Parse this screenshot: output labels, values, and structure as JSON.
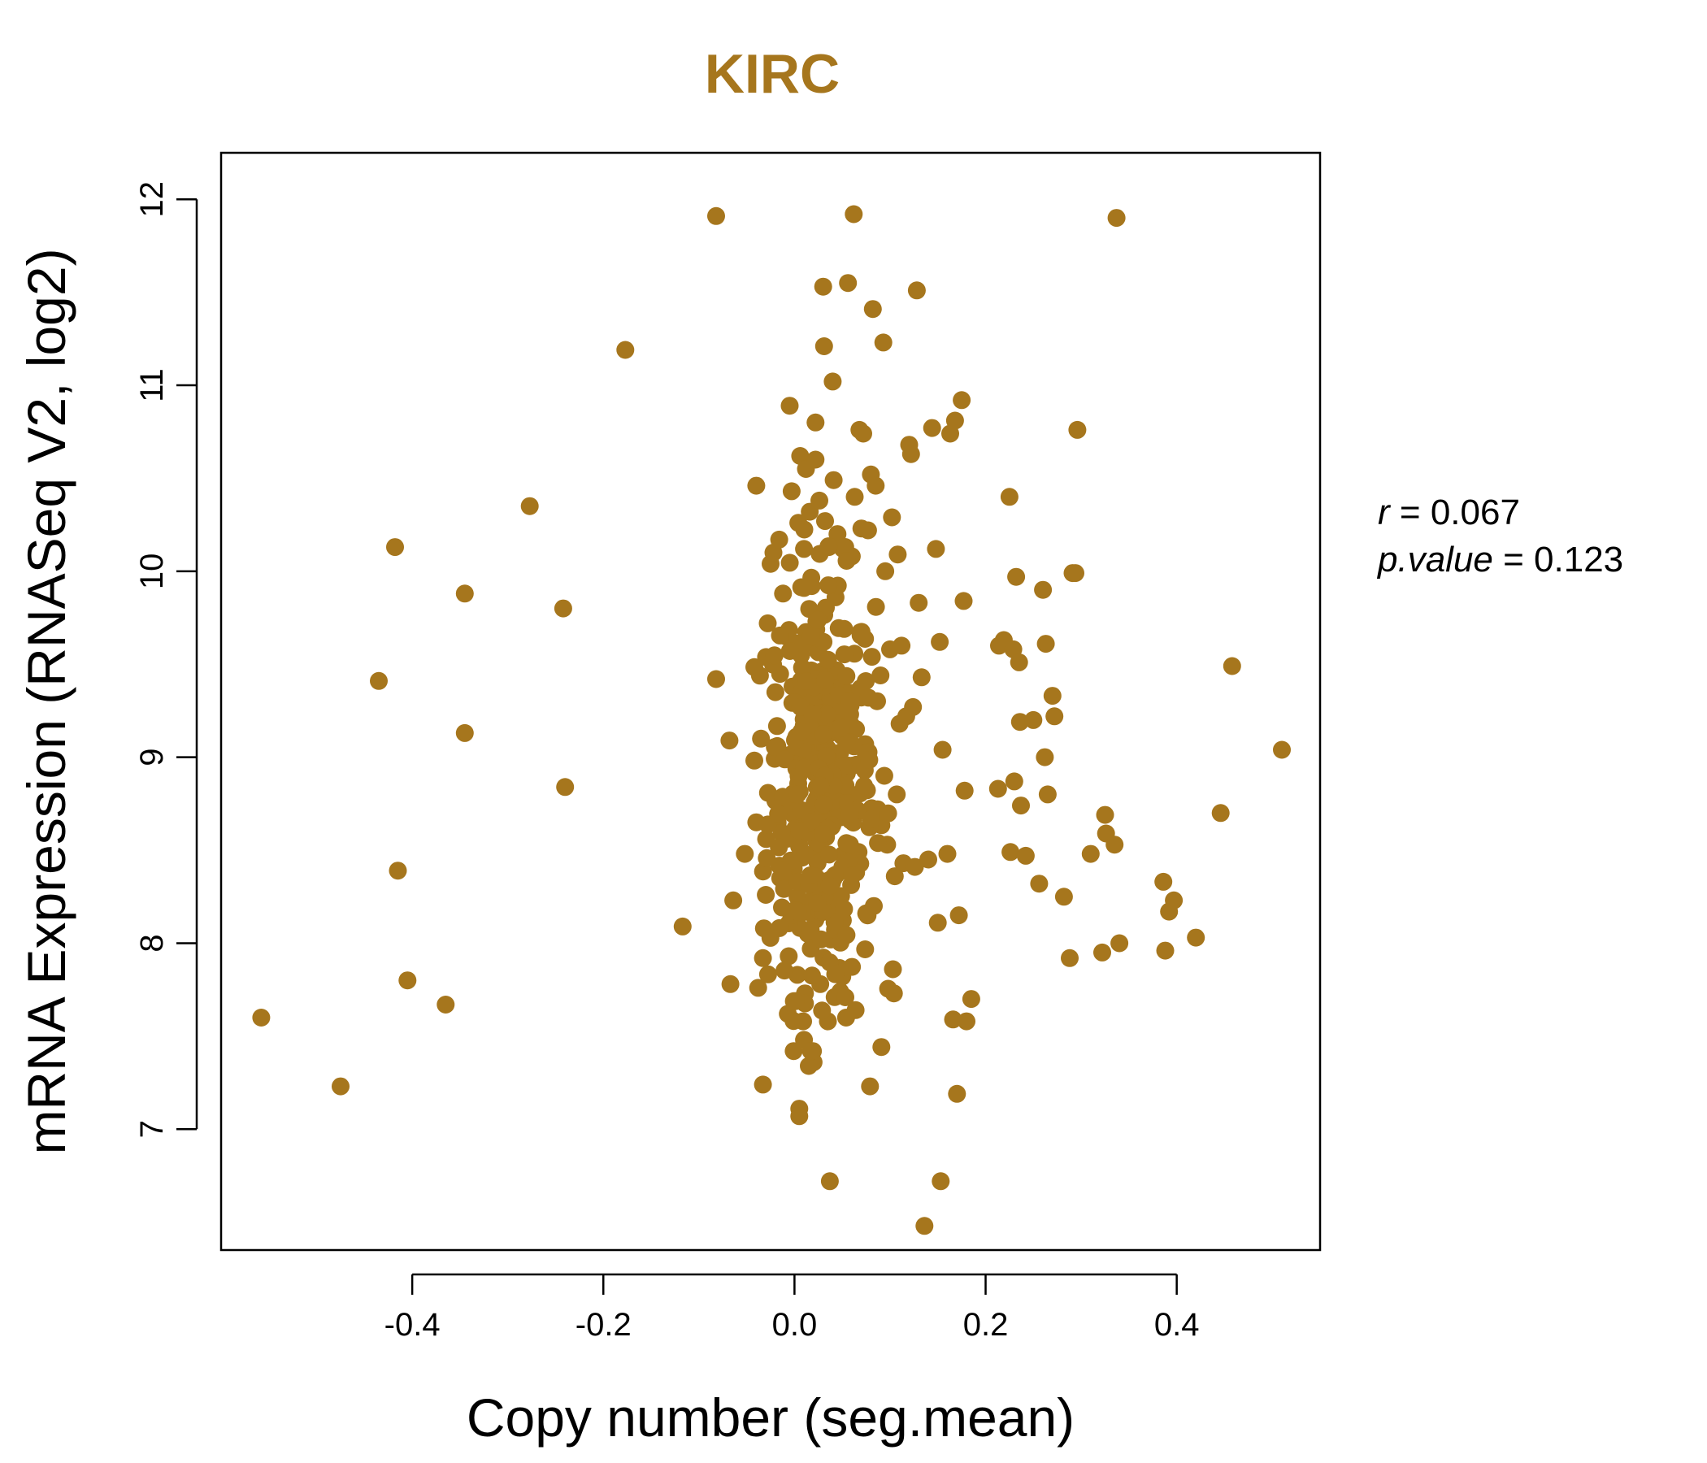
{
  "chart_data": {
    "type": "scatter",
    "title": "KIRC",
    "xlabel": "Copy number (seg.mean)",
    "ylabel": "mRNA Expression (RNASeq V2, log2)",
    "xlim": [
      -0.6,
      0.55
    ],
    "ylim": [
      6.35,
      12.25
    ],
    "x_ticks": [
      -0.4,
      -0.2,
      0.0,
      0.2,
      0.4
    ],
    "x_tick_labels": [
      "-0.4",
      "-0.2",
      "0.0",
      "0.2",
      "0.4"
    ],
    "y_ticks": [
      7,
      8,
      9,
      10,
      11,
      12
    ],
    "y_tick_labels": [
      "7",
      "8",
      "9",
      "10",
      "11",
      "12"
    ],
    "colors": {
      "points": "#A6761D",
      "title": "#A6761D",
      "axes": "#000000"
    },
    "stats": {
      "r_label": "r",
      "r_value": "0.067",
      "p_label": "p.value",
      "p_value": "0.123"
    },
    "points": [
      [
        -0.558,
        7.6
      ],
      [
        -0.475,
        7.23
      ],
      [
        -0.435,
        9.41
      ],
      [
        -0.418,
        10.13
      ],
      [
        -0.415,
        8.39
      ],
      [
        -0.405,
        7.8
      ],
      [
        -0.365,
        7.67
      ],
      [
        -0.345,
        9.13
      ],
      [
        -0.345,
        9.88
      ],
      [
        -0.277,
        10.35
      ],
      [
        -0.242,
        9.8
      ],
      [
        -0.24,
        8.84
      ],
      [
        -0.177,
        11.19
      ],
      [
        -0.117,
        8.09
      ],
      [
        -0.082,
        11.91
      ],
      [
        -0.082,
        9.42
      ],
      [
        -0.068,
        9.09
      ],
      [
        -0.067,
        7.78
      ],
      [
        -0.064,
        8.23
      ],
      [
        -0.052,
        8.48
      ],
      [
        -0.04,
        10.46
      ],
      [
        -0.04,
        8.65
      ],
      [
        -0.038,
        7.76
      ],
      [
        -0.035,
        9.1
      ],
      [
        -0.033,
        7.24
      ],
      [
        -0.033,
        7.92
      ],
      [
        -0.032,
        8.08
      ],
      [
        -0.03,
        8.26
      ],
      [
        -0.028,
        9.72
      ],
      [
        -0.025,
        10.04
      ],
      [
        -0.022,
        10.1
      ],
      [
        -0.02,
        9.35
      ],
      [
        -0.018,
        9.06
      ],
      [
        -0.016,
        10.17
      ],
      [
        -0.015,
        8.35
      ],
      [
        -0.012,
        9.88
      ],
      [
        -0.01,
        8.57
      ],
      [
        -0.009,
        9.65
      ],
      [
        -0.007,
        7.62
      ],
      [
        -0.006,
        7.93
      ],
      [
        -0.005,
        10.89
      ],
      [
        -0.003,
        10.43
      ],
      [
        -0.002,
        9.38
      ],
      [
        0.0,
        8.14
      ],
      [
        0.001,
        8.8
      ],
      [
        0.002,
        9.11
      ],
      [
        0.003,
        7.83
      ],
      [
        0.004,
        10.26
      ],
      [
        0.005,
        7.11
      ],
      [
        0.005,
        7.07
      ],
      [
        0.006,
        10.62
      ],
      [
        0.007,
        9.55
      ],
      [
        0.008,
        8.46
      ],
      [
        0.009,
        7.58
      ],
      [
        0.01,
        10.12
      ],
      [
        0.01,
        7.48
      ],
      [
        0.011,
        7.73
      ],
      [
        0.012,
        10.55
      ],
      [
        0.013,
        9.28
      ],
      [
        0.014,
        8.05
      ],
      [
        0.015,
        7.34
      ],
      [
        0.016,
        10.32
      ],
      [
        0.017,
        7.97
      ],
      [
        0.018,
        9.92
      ],
      [
        0.019,
        8.67
      ],
      [
        0.02,
        7.36
      ],
      [
        0.022,
        10.6
      ],
      [
        0.022,
        10.8
      ],
      [
        0.023,
        9.73
      ],
      [
        0.024,
        8.25
      ],
      [
        0.026,
        10.38
      ],
      [
        0.027,
        7.78
      ],
      [
        0.028,
        9.46
      ],
      [
        0.029,
        8.91
      ],
      [
        0.03,
        11.53
      ],
      [
        0.031,
        11.21
      ],
      [
        0.032,
        10.27
      ],
      [
        0.033,
        8.57
      ],
      [
        0.034,
        9.02
      ],
      [
        0.035,
        7.58
      ],
      [
        0.036,
        10.13
      ],
      [
        0.037,
        6.72
      ],
      [
        0.038,
        8.02
      ],
      [
        0.04,
        11.02
      ],
      [
        0.041,
        10.49
      ],
      [
        0.042,
        7.71
      ],
      [
        0.043,
        9.86
      ],
      [
        0.044,
        8.37
      ],
      [
        0.045,
        10.2
      ],
      [
        0.047,
        8.82
      ],
      [
        0.049,
        9.18
      ],
      [
        0.05,
        7.82
      ],
      [
        0.052,
        9.69
      ],
      [
        0.054,
        7.6
      ],
      [
        0.056,
        11.55
      ],
      [
        0.058,
        9.34
      ],
      [
        0.06,
        10.08
      ],
      [
        0.062,
        11.92
      ],
      [
        0.063,
        10.4
      ],
      [
        0.064,
        7.64
      ],
      [
        0.065,
        8.96
      ],
      [
        0.067,
        8.49
      ],
      [
        0.068,
        10.76
      ],
      [
        0.07,
        10.23
      ],
      [
        0.072,
        10.74
      ],
      [
        0.074,
        9.07
      ],
      [
        0.075,
        8.16
      ],
      [
        0.077,
        10.22
      ],
      [
        0.079,
        7.23
      ],
      [
        0.08,
        10.52
      ],
      [
        0.081,
        9.54
      ],
      [
        0.082,
        11.41
      ],
      [
        0.083,
        8.2
      ],
      [
        0.085,
        10.46
      ],
      [
        0.087,
        8.72
      ],
      [
        0.09,
        9.44
      ],
      [
        0.093,
        11.23
      ],
      [
        0.094,
        8.9
      ],
      [
        0.095,
        10.0
      ],
      [
        0.097,
        8.53
      ],
      [
        0.1,
        9.58
      ],
      [
        0.102,
        10.29
      ],
      [
        0.103,
        7.86
      ],
      [
        0.104,
        7.73
      ],
      [
        0.105,
        8.36
      ],
      [
        0.107,
        8.8
      ],
      [
        0.108,
        10.09
      ],
      [
        0.11,
        9.18
      ],
      [
        0.112,
        9.6
      ],
      [
        0.114,
        8.43
      ],
      [
        0.117,
        9.22
      ],
      [
        0.12,
        10.68
      ],
      [
        0.122,
        10.63
      ],
      [
        0.124,
        9.27
      ],
      [
        0.126,
        8.41
      ],
      [
        0.128,
        11.51
      ],
      [
        0.13,
        9.83
      ],
      [
        0.133,
        9.43
      ],
      [
        0.136,
        6.48
      ],
      [
        0.14,
        8.45
      ],
      [
        0.144,
        10.77
      ],
      [
        0.148,
        10.12
      ],
      [
        0.15,
        8.11
      ],
      [
        0.152,
        9.62
      ],
      [
        0.153,
        6.72
      ],
      [
        0.155,
        9.04
      ],
      [
        0.16,
        8.48
      ],
      [
        0.163,
        10.74
      ],
      [
        0.166,
        7.59
      ],
      [
        0.168,
        10.81
      ],
      [
        0.17,
        7.19
      ],
      [
        0.172,
        8.15
      ],
      [
        0.175,
        10.92
      ],
      [
        0.177,
        9.84
      ],
      [
        0.178,
        8.82
      ],
      [
        0.18,
        7.58
      ],
      [
        0.185,
        7.7
      ],
      [
        0.213,
        8.83
      ],
      [
        0.214,
        9.6
      ],
      [
        0.219,
        9.63
      ],
      [
        0.225,
        10.4
      ],
      [
        0.226,
        8.49
      ],
      [
        0.229,
        9.58
      ],
      [
        0.23,
        8.87
      ],
      [
        0.232,
        9.97
      ],
      [
        0.235,
        9.51
      ],
      [
        0.236,
        9.19
      ],
      [
        0.237,
        8.74
      ],
      [
        0.242,
        8.47
      ],
      [
        0.25,
        9.2
      ],
      [
        0.256,
        8.32
      ],
      [
        0.26,
        9.9
      ],
      [
        0.262,
        9.0
      ],
      [
        0.263,
        9.61
      ],
      [
        0.265,
        8.8
      ],
      [
        0.27,
        9.33
      ],
      [
        0.272,
        9.22
      ],
      [
        0.282,
        8.25
      ],
      [
        0.288,
        7.92
      ],
      [
        0.291,
        9.99
      ],
      [
        0.294,
        9.99
      ],
      [
        0.296,
        10.76
      ],
      [
        0.31,
        8.48
      ],
      [
        0.322,
        7.95
      ],
      [
        0.325,
        8.69
      ],
      [
        0.326,
        8.59
      ],
      [
        0.335,
        8.53
      ],
      [
        0.337,
        11.9
      ],
      [
        0.34,
        8.0
      ],
      [
        0.386,
        8.33
      ],
      [
        0.388,
        7.96
      ],
      [
        0.392,
        8.17
      ],
      [
        0.397,
        8.23
      ],
      [
        0.42,
        8.03
      ],
      [
        0.446,
        8.7
      ],
      [
        0.458,
        9.49
      ],
      [
        0.51,
        9.04
      ]
    ],
    "cluster": {
      "n": 340,
      "x_mean": 0.028,
      "x_sd": 0.028,
      "y_mean": 8.85,
      "y_sd": 0.55,
      "seed": 12345
    }
  }
}
